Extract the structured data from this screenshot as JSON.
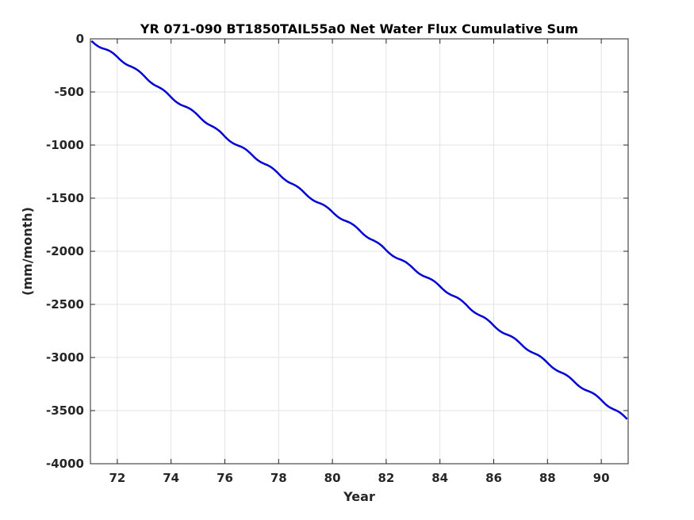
{
  "chart_data": {
    "type": "line",
    "title": "YR 071-090 BT1850TAIL55a0 Net Water Flux Cumulative Sum",
    "xlabel": "Year",
    "ylabel": "(mm/month)",
    "xlim": [
      71,
      91
    ],
    "ylim": [
      -4000,
      0
    ],
    "xticks": [
      72,
      74,
      76,
      78,
      80,
      82,
      84,
      86,
      88,
      90
    ],
    "yticks": [
      0,
      -500,
      -1000,
      -1500,
      -2000,
      -2500,
      -3000,
      -3500,
      -4000
    ],
    "grid": true,
    "series": [
      {
        "color": "#0000d6",
        "x": [
          71.04,
          72,
          73,
          74,
          75,
          76,
          77,
          78,
          79,
          80,
          81,
          82,
          83,
          84,
          85,
          86,
          87,
          88,
          89,
          90,
          90.96
        ],
        "y": [
          -20,
          -170,
          -350,
          -550,
          -720,
          -920,
          -1090,
          -1270,
          -1460,
          -1630,
          -1800,
          -1990,
          -2160,
          -2330,
          -2510,
          -2700,
          -2870,
          -3050,
          -3230,
          -3400,
          -3580
        ]
      }
    ]
  }
}
